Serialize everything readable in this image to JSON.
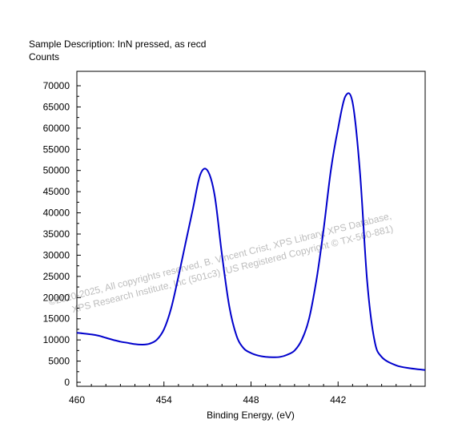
{
  "header": {
    "sample_description": "Sample Description:  InN pressed, as recd",
    "y_axis_title": "Counts"
  },
  "watermark": {
    "line1": "©2020-2025,  All copyrights reserved,  B. Vincent Crist,  XPS Library, XPS Database,",
    "line2": "XPS Research Institute, Inc (501c3)   (US Registered Copyright © TX-560-881)"
  },
  "colors": {
    "series": "#0000cc",
    "axis": "#000000",
    "watermark": "#bdbdbd"
  },
  "chart_data": {
    "type": "line",
    "title": "",
    "xlabel": "Binding Energy, (eV)",
    "ylabel": "Counts",
    "x_reversed": true,
    "xlim": [
      460,
      436
    ],
    "ylim": [
      0,
      72000
    ],
    "x_ticks": [
      460,
      454,
      448,
      442
    ],
    "y_ticks": [
      0,
      5000,
      10000,
      15000,
      20000,
      25000,
      30000,
      35000,
      40000,
      45000,
      50000,
      55000,
      60000,
      65000,
      70000
    ],
    "grid": false,
    "series": [
      {
        "x": [
          460.0,
          459.5,
          459.0,
          458.5,
          458.0,
          457.5,
          457.0,
          456.5,
          456.0,
          455.5,
          455.0,
          454.5,
          454.0,
          453.5,
          453.0,
          452.5,
          452.0,
          451.5,
          451.0,
          450.5,
          450.0,
          449.5,
          449.0,
          448.5,
          448.0,
          447.5,
          447.0,
          446.5,
          446.0,
          445.5,
          445.0,
          444.5,
          444.0,
          443.5,
          443.0,
          442.5,
          442.0,
          441.5,
          441.0,
          440.5,
          440.0,
          439.5,
          439.0,
          438.0,
          437.0,
          436.0
        ],
        "y": [
          11700,
          11500,
          11300,
          11000,
          10500,
          10000,
          9600,
          9300,
          9000,
          8900,
          9100,
          10000,
          12500,
          17500,
          25000,
          33000,
          41000,
          49000,
          50000,
          44000,
          30000,
          18000,
          11000,
          8000,
          6900,
          6300,
          6000,
          5900,
          6000,
          6500,
          7500,
          10000,
          15000,
          24000,
          36000,
          50000,
          60000,
          67500,
          66000,
          50000,
          24000,
          10000,
          6000,
          4000,
          3300,
          2900
        ]
      }
    ]
  }
}
